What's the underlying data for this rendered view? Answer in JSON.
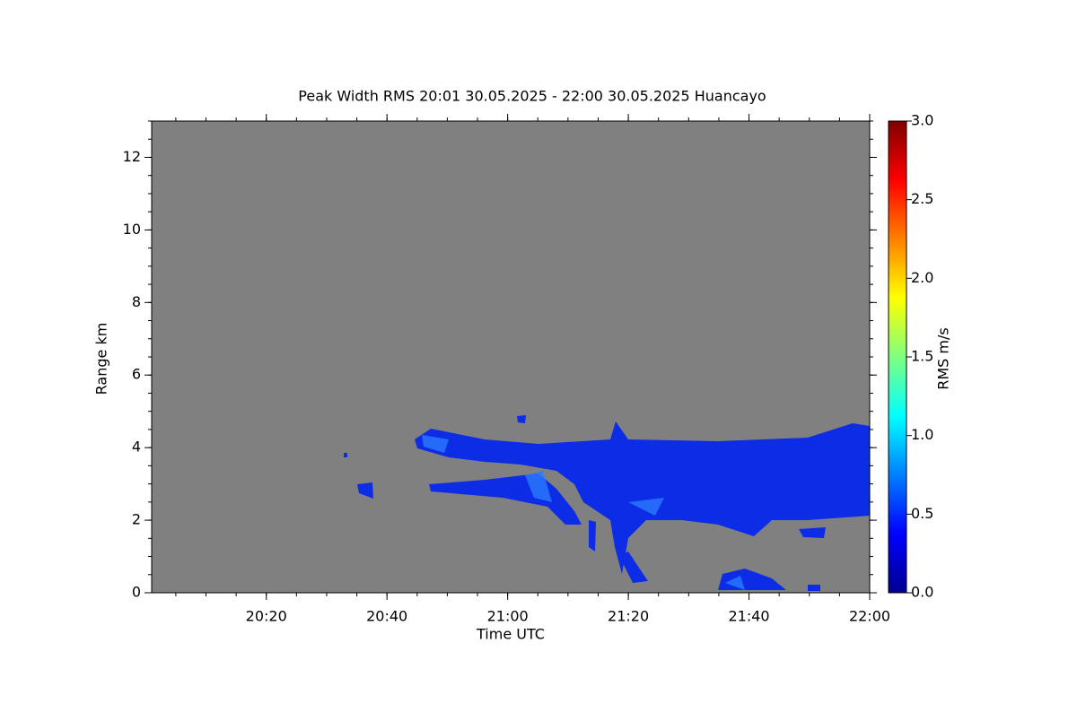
{
  "chart_data": {
    "type": "heatmap",
    "title": "Peak Width RMS   20:01 30.05.2025 - 22:00 30.05.2025 Huancayo",
    "x_label": "Time UTC",
    "y_label": "Range km",
    "colorbar_label": "RMS m/s",
    "xlim": [
      1201,
      1320
    ],
    "xticks": [
      {
        "value": 1220,
        "label": "20:20"
      },
      {
        "value": 1240,
        "label": "20:40"
      },
      {
        "value": 1260,
        "label": "21:00"
      },
      {
        "value": 1280,
        "label": "21:20"
      },
      {
        "value": 1300,
        "label": "21:40"
      },
      {
        "value": 1320,
        "label": "22:00"
      }
    ],
    "ylim": [
      0,
      13
    ],
    "yticks": [
      0,
      2,
      4,
      6,
      8,
      10,
      12
    ],
    "clim": [
      0,
      3
    ],
    "cticks": [
      {
        "value": 0,
        "label": "0.0"
      },
      {
        "value": 0.5,
        "label": "0.5"
      },
      {
        "value": 1,
        "label": "1.0"
      },
      {
        "value": 1.5,
        "label": "1.5"
      },
      {
        "value": 2,
        "label": "2.0"
      },
      {
        "value": 2.5,
        "label": "2.5"
      },
      {
        "value": 3,
        "label": "3.0"
      }
    ]
  }
}
